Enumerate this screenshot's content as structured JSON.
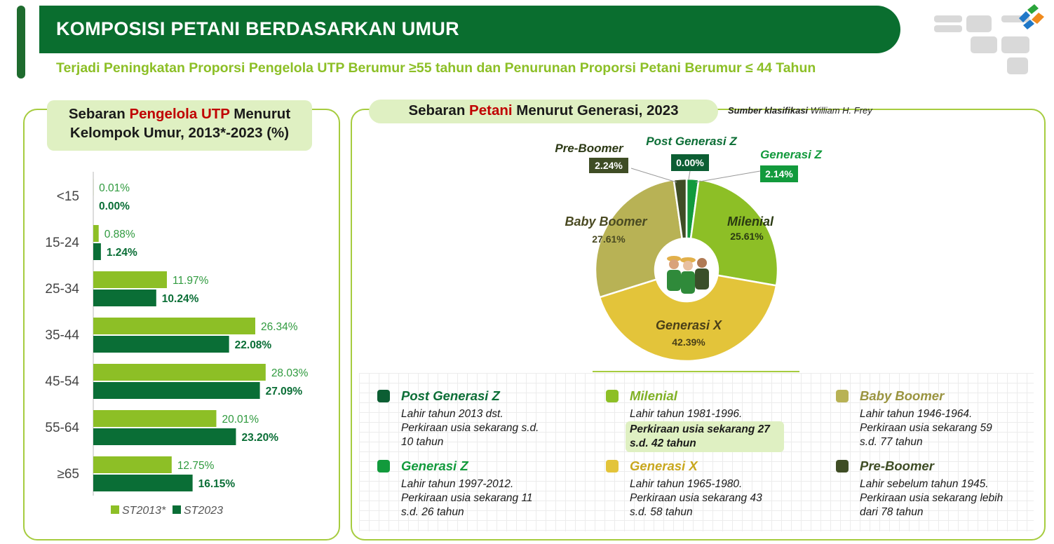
{
  "header": {
    "title": "KOMPOSISI PETANI BERDASARKAN UMUR",
    "subtitle": "Terjadi Peningkatan Proporsi Pengelola UTP Berumur ≥55 tahun dan Penurunan Proporsi Petani Berumur ≤ 44 Tahun"
  },
  "left_panel": {
    "title_part1": "Sebaran ",
    "title_highlight": "Pengelola UTP",
    "title_part2": " Menurut",
    "title_line2": "Kelompok Umur, 2013*-2023 (%)"
  },
  "right_panel": {
    "title_part1": "Sebaran ",
    "title_highlight": "Petani",
    "title_part2": " Menurut Generasi, 2023",
    "source_label": "Sumber klasifikasi",
    "source_name": " William H. Frey"
  },
  "colors": {
    "title_green": "#0a6e2f",
    "st2013": "#8dbf26",
    "st2023": "#0a6e36",
    "highlight_red": "#c00000"
  },
  "chart_data": [
    {
      "type": "bar",
      "orientation": "horizontal",
      "title": "Sebaran Pengelola UTP Menurut Kelompok Umur, 2013*-2023 (%)",
      "categories": [
        "<15",
        "15-24",
        "25-34",
        "35-44",
        "45-54",
        "55-64",
        "≥65"
      ],
      "series": [
        {
          "name": "ST2013*",
          "color": "#8dbf26",
          "values": [
            0.01,
            0.88,
            11.97,
            26.34,
            28.03,
            20.01,
            12.75
          ],
          "labels": [
            "0.01%",
            "0.88%",
            "11.97%",
            "26.34%",
            "28.03%",
            "20.01%",
            "12.75%"
          ]
        },
        {
          "name": "ST2023",
          "color": "#0a6e36",
          "values": [
            0.0,
            1.24,
            10.24,
            22.08,
            27.09,
            23.2,
            16.15
          ],
          "labels": [
            "0.00%",
            "1.24%",
            "10.24%",
            "22.08%",
            "27.09%",
            "23.20%",
            "16.15%"
          ]
        }
      ],
      "xlim": [
        0,
        30
      ],
      "legend": "bottom"
    },
    {
      "type": "pie",
      "style": "donut",
      "title": "Sebaran Petani Menurut Generasi, 2023",
      "slices": [
        {
          "name": "Post Generasi Z",
          "value": 0.0,
          "label": "0.00%",
          "color": "#0c5e33"
        },
        {
          "name": "Generasi Z",
          "value": 2.14,
          "label": "2.14%",
          "color": "#129a3c"
        },
        {
          "name": "Milenial",
          "value": 25.61,
          "label": "25.61%",
          "color": "#8dbf26"
        },
        {
          "name": "Generasi X",
          "value": 42.39,
          "label": "42.39%",
          "color": "#e3c43a"
        },
        {
          "name": "Baby Boomer",
          "value": 27.61,
          "label": "27.61%",
          "color": "#b8b255"
        },
        {
          "name": "Pre-Boomer",
          "value": 2.24,
          "label": "2.24%",
          "color": "#3f4d25"
        }
      ]
    }
  ],
  "generations": [
    {
      "name": "Post Generasi Z",
      "color": "#0c5e33",
      "name_color": "#0c6e36",
      "lines": [
        "Lahir tahun 2013 dst.",
        "Perkiraan usia sekarang s.d.",
        "10 tahun"
      ],
      "highlight": false
    },
    {
      "name": "Milenial",
      "color": "#8dbf26",
      "name_color": "#7fb024",
      "lines": [
        "Lahir tahun 1981-1996.",
        "Perkiraan usia sekarang 27",
        "s.d. 42 tahun"
      ],
      "highlight": true
    },
    {
      "name": "Baby Boomer",
      "color": "#b8b255",
      "name_color": "#9a9440",
      "lines": [
        "Lahir tahun 1946-1964.",
        "Perkiraan usia sekarang 59",
        "s.d. 77 tahun"
      ],
      "highlight": false
    },
    {
      "name": "Generasi Z",
      "color": "#129a3c",
      "name_color": "#129a3c",
      "lines": [
        "Lahir tahun 1997-2012.",
        "Perkiraan usia sekarang 11",
        "s.d. 26 tahun"
      ],
      "highlight": false
    },
    {
      "name": "Generasi X",
      "color": "#e3c43a",
      "name_color": "#c8a71e",
      "lines": [
        "Lahir tahun 1965-1980.",
        "Perkiraan usia sekarang 43",
        "s.d. 58 tahun"
      ],
      "highlight": false
    },
    {
      "name": "Pre-Boomer",
      "color": "#3f4d25",
      "name_color": "#3f4d25",
      "lines": [
        "Lahir sebelum tahun 1945.",
        "Perkiraan usia sekarang lebih",
        "dari 78 tahun"
      ],
      "highlight": false
    }
  ]
}
